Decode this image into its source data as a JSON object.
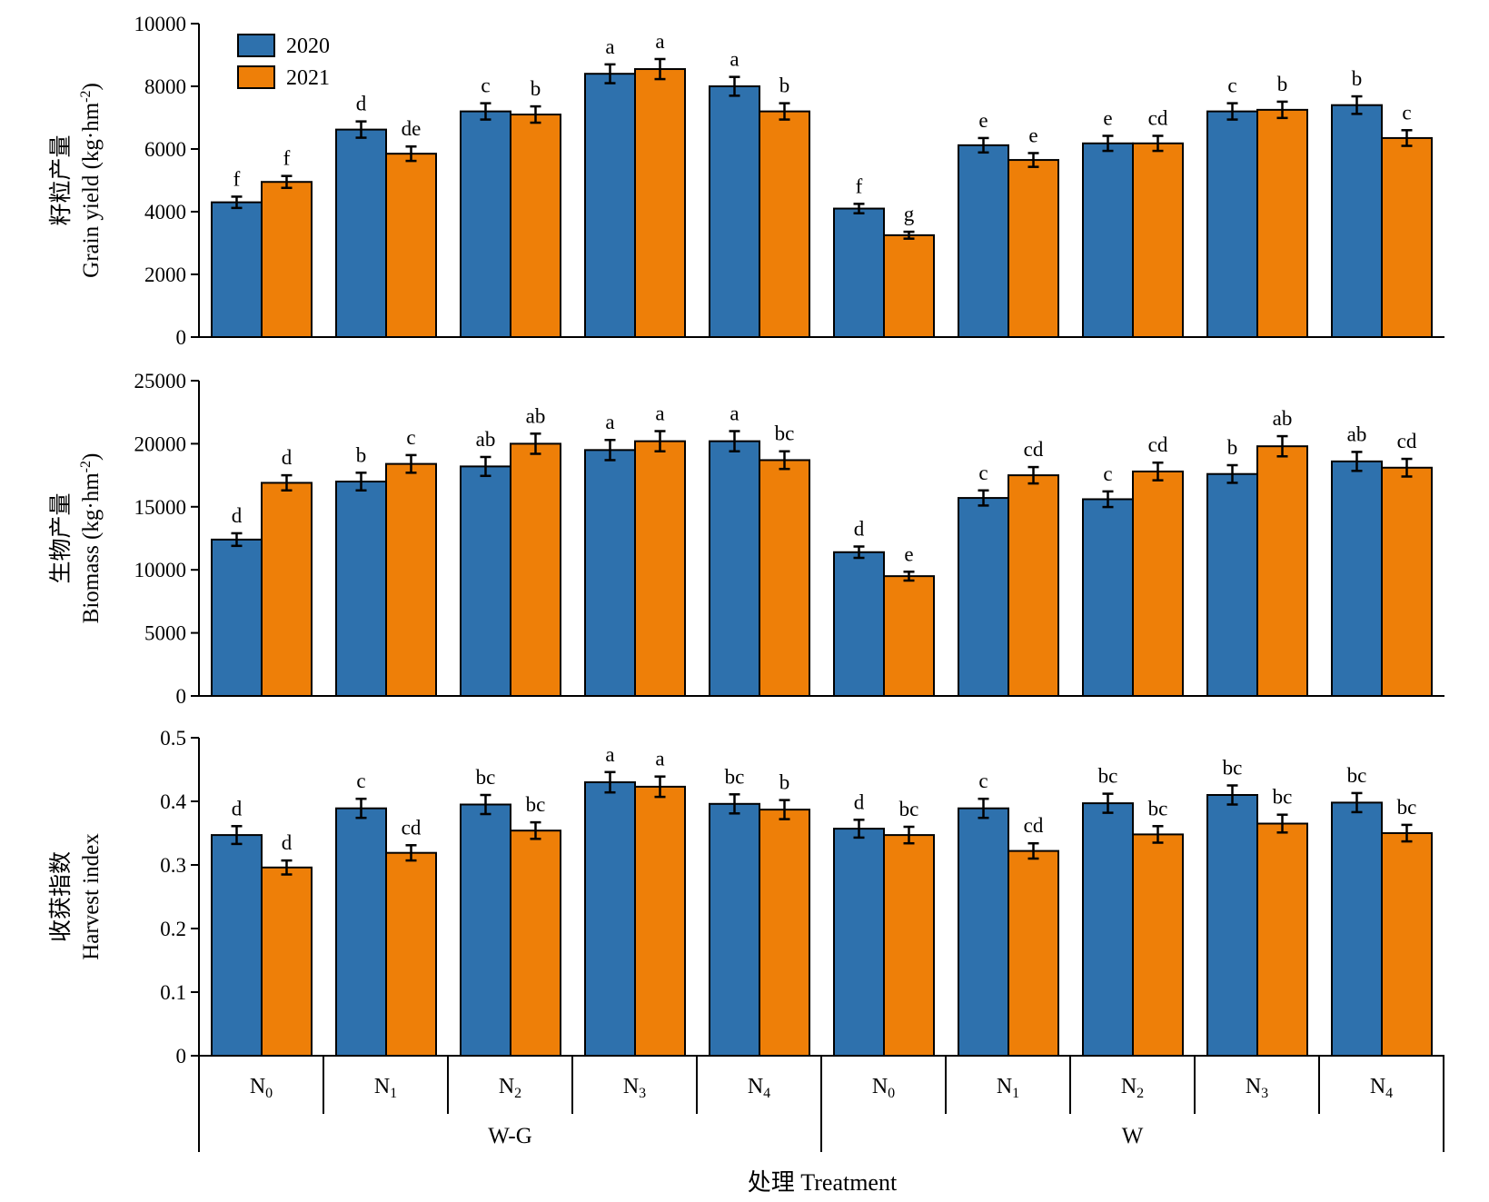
{
  "legend": [
    {
      "name": "2020",
      "color": "#2e71ad"
    },
    {
      "name": "2021",
      "color": "#ee7f08"
    }
  ],
  "x_axis": {
    "title": "处理 Treatment",
    "categories": [
      "N0",
      "N1",
      "N2",
      "N3",
      "N4",
      "N0",
      "N1",
      "N2",
      "N3",
      "N4"
    ],
    "category_base": "N",
    "category_subscripts": [
      "0",
      "1",
      "2",
      "3",
      "4",
      "0",
      "1",
      "2",
      "3",
      "4"
    ],
    "groups": [
      {
        "label": "W-G",
        "categories": [
          "N0",
          "N1",
          "N2",
          "N3",
          "N4"
        ]
      },
      {
        "label": "W",
        "categories": [
          "N0",
          "N1",
          "N2",
          "N3",
          "N4"
        ]
      }
    ]
  },
  "chart_data": [
    {
      "type": "bar",
      "panel": "grain-yield",
      "ylabel_cn": "籽粒产量",
      "ylabel_en": "Grain yield (kg·hm",
      "ylabel_sup": "-2",
      "ylabel_close": ")",
      "ylim": [
        0,
        10000
      ],
      "yticks": [
        0,
        2000,
        4000,
        6000,
        8000,
        10000
      ],
      "series": [
        {
          "name": "2020",
          "values": [
            4300,
            6620,
            7200,
            8400,
            8000,
            4100,
            6120,
            6180,
            7200,
            7400
          ],
          "errors": [
            180,
            260,
            260,
            300,
            300,
            150,
            230,
            240,
            260,
            280
          ],
          "letters": [
            "f",
            "d",
            "c",
            "a",
            "a",
            "f",
            "e",
            "e",
            "c",
            "b"
          ]
        },
        {
          "name": "2021",
          "values": [
            4950,
            5850,
            7100,
            8550,
            7200,
            3250,
            5650,
            6180,
            7250,
            6350
          ],
          "errors": [
            190,
            230,
            260,
            320,
            260,
            110,
            220,
            240,
            260,
            250
          ],
          "letters": [
            "f",
            "de",
            "b",
            "a",
            "b",
            "g",
            "e",
            "cd",
            "b",
            "c"
          ]
        }
      ]
    },
    {
      "type": "bar",
      "panel": "biomass",
      "ylabel_cn": "生物产量",
      "ylabel_en": "Biomass (kg·hm",
      "ylabel_sup": "-2",
      "ylabel_close": ")",
      "ylim": [
        0,
        25000
      ],
      "yticks": [
        0,
        5000,
        10000,
        15000,
        20000,
        25000
      ],
      "series": [
        {
          "name": "2020",
          "values": [
            12400,
            17000,
            18200,
            19500,
            20200,
            11400,
            15700,
            15600,
            17600,
            18600
          ],
          "errors": [
            500,
            700,
            750,
            800,
            800,
            450,
            600,
            620,
            700,
            750
          ],
          "letters": [
            "d",
            "b",
            "ab",
            "a",
            "a",
            "d",
            "c",
            "c",
            "b",
            "ab"
          ]
        },
        {
          "name": "2021",
          "values": [
            16900,
            18400,
            20000,
            20200,
            18700,
            9500,
            17500,
            17800,
            19800,
            18100
          ],
          "errors": [
            600,
            700,
            800,
            800,
            700,
            350,
            650,
            700,
            800,
            700
          ],
          "letters": [
            "d",
            "c",
            "ab",
            "a",
            "bc",
            "e",
            "cd",
            "cd",
            "ab",
            "cd"
          ]
        }
      ]
    },
    {
      "type": "bar",
      "panel": "harvest-index",
      "ylabel_cn": "收获指数",
      "ylabel_en": "Harvest index",
      "ylabel_sup": "",
      "ylabel_close": "",
      "ylim": [
        0,
        0.5
      ],
      "yticks": [
        "0",
        "0.1",
        "0.2",
        "0.3",
        "0.4",
        "0.5"
      ],
      "series": [
        {
          "name": "2020",
          "values": [
            0.347,
            0.389,
            0.395,
            0.43,
            0.396,
            0.357,
            0.389,
            0.397,
            0.41,
            0.398
          ],
          "errors": [
            0.014,
            0.015,
            0.015,
            0.016,
            0.015,
            0.014,
            0.015,
            0.015,
            0.015,
            0.015
          ],
          "letters": [
            "d",
            "c",
            "bc",
            "a",
            "bc",
            "d",
            "c",
            "bc",
            "bc",
            "bc"
          ]
        },
        {
          "name": "2021",
          "values": [
            0.296,
            0.319,
            0.354,
            0.423,
            0.387,
            0.347,
            0.322,
            0.348,
            0.365,
            0.35
          ],
          "errors": [
            0.011,
            0.012,
            0.013,
            0.016,
            0.015,
            0.013,
            0.012,
            0.013,
            0.014,
            0.013
          ],
          "letters": [
            "d",
            "cd",
            "bc",
            "a",
            "b",
            "bc",
            "cd",
            "bc",
            "bc",
            "bc"
          ]
        }
      ]
    }
  ]
}
